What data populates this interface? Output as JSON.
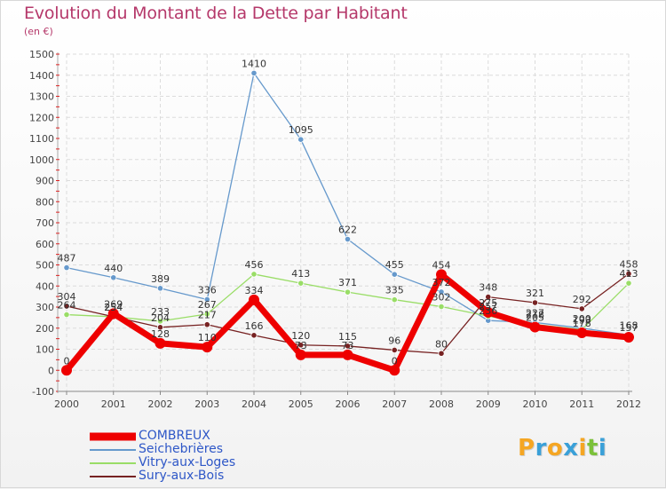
{
  "header": {
    "title": "Evolution du Montant de la Dette par Habitant",
    "subtitle": "(en €)"
  },
  "chart_data": {
    "type": "line",
    "xlabel": "",
    "ylabel": "",
    "x": [
      2000,
      2001,
      2002,
      2003,
      2004,
      2005,
      2006,
      2007,
      2008,
      2009,
      2010,
      2011,
      2012
    ],
    "ylim": [
      -100,
      1500
    ],
    "yticks": [
      -100,
      0,
      100,
      200,
      300,
      400,
      500,
      600,
      700,
      800,
      900,
      1000,
      1100,
      1200,
      1300,
      1400,
      1500
    ],
    "grid": true,
    "legend_position": "bottom-left",
    "series": [
      {
        "name": "COMBREUX",
        "color": "#ee0000",
        "values": [
          0,
          269,
          128,
          110,
          334,
          73,
          73,
          0,
          454,
          275,
          205,
          178,
          157
        ]
      },
      {
        "name": "Seichebrières",
        "color": "#6699cc",
        "values": [
          487,
          440,
          389,
          336,
          1410,
          1095,
          622,
          455,
          372,
          236,
          227,
          200,
          168
        ]
      },
      {
        "name": "Vitry-aux-Loges",
        "color": "#99dd66",
        "values": [
          264,
          254,
          233,
          267,
          456,
          413,
          371,
          335,
          302,
          257,
          218,
          193,
          413
        ]
      },
      {
        "name": "Sury-aux-Bois",
        "color": "#772222",
        "values": [
          304,
          254,
          204,
          217,
          166,
          120,
          115,
          96,
          80,
          348,
          321,
          292,
          458
        ]
      }
    ]
  },
  "brand": {
    "letters": [
      "P",
      "r",
      "o",
      "x",
      "i",
      "t",
      "i"
    ],
    "colors": [
      "#f5a623",
      "#3aa0d8",
      "#f5a623",
      "#3aa0d8",
      "#f5a623",
      "#7cc13a",
      "#3aa0d8"
    ]
  }
}
